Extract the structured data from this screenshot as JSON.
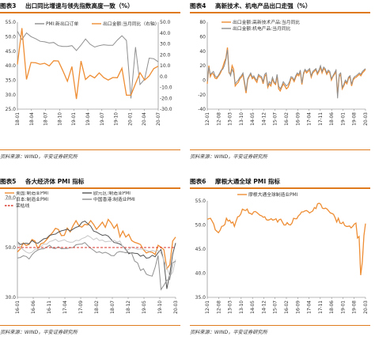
{
  "source_text": "资料来源：WIND，平安证券研究所",
  "colors": {
    "orange": "#ee8d33",
    "gray": "#8f8f8f",
    "light_gray": "#c8c8c8",
    "dark_gray": "#555555",
    "red_dashed": "#d9362c",
    "accent": "#e07a1e"
  },
  "charts": [
    {
      "id": "fig3",
      "fig_no": "图表3",
      "title": "出口同比增速与领先指数高度一致（%）",
      "legend": [
        "PMI:新出口订单",
        "出口金额:当月同比（右轴）"
      ],
      "y_left_ticks": [
        "55.0",
        "50.0",
        "45.0",
        "40.0",
        "35.0",
        "30.0",
        "25.0"
      ],
      "y_right_ticks": [
        "50.0",
        "40.0",
        "30.0",
        "20.0",
        "10.0",
        "0.0",
        "-10.0",
        "-20.0",
        "-30.0"
      ],
      "x_ticks": [
        "18-01",
        "18-04",
        "18-07",
        "18-10",
        "19-01",
        "19-04",
        "19-07",
        "19-10",
        "20-01",
        "20-04",
        "20-07"
      ]
    },
    {
      "id": "fig4",
      "fig_no": "图表4",
      "title": "高新技术、机电产品出口走强（%）",
      "legend": [
        "出口金额:高新技术产品:当月同比",
        "出口金额:机电产品:当月同比"
      ],
      "y_ticks": [
        "80",
        "60",
        "40",
        "20",
        "0",
        "-20",
        "-40"
      ],
      "x_ticks": [
        "12-01",
        "12-08",
        "13-03",
        "13-10",
        "14-05",
        "14-12",
        "15-07",
        "16-02",
        "16-09",
        "17-04",
        "17-11",
        "18-06",
        "19-01",
        "19-08",
        "20-03"
      ]
    },
    {
      "id": "fig5",
      "fig_no": "图表5",
      "title": "各大经济体 PMI 指标",
      "legend": [
        "美国:制造业PMI",
        "欧元区:制造业PMI",
        "日本:制造业PMI",
        "中国香港:制造业PMI",
        "荣枯线"
      ],
      "y_ticks": [
        "70.0",
        "50.0",
        "30.0"
      ],
      "x_ticks": [
        "16-01",
        "16-06",
        "16-11",
        "17-04",
        "17-09",
        "18-02",
        "18-07",
        "18-12",
        "19-05",
        "19-10",
        "20-03"
      ]
    },
    {
      "id": "fig6",
      "fig_no": "图表6",
      "title": "摩根大通全球 PMI 指标",
      "legend": [
        "摩根大通全球制造业PMI"
      ],
      "y_ticks": [
        "55.0",
        "50.0",
        "45.0",
        "40.0",
        "35.0"
      ],
      "x_ticks": [
        "12-01",
        "12-08",
        "13-03",
        "13-10",
        "14-05",
        "14-12",
        "15-07",
        "16-02",
        "16-09",
        "17-04",
        "17-11",
        "18-06",
        "19-01",
        "19-08",
        "20-03"
      ]
    }
  ],
  "chart_data": [
    {
      "type": "line",
      "title": "出口同比增速与领先指数高度一致（%）",
      "xlabel": "",
      "ylabel": "",
      "x_range": [
        "18-01",
        "20-08"
      ],
      "ylim_left": [
        25,
        55
      ],
      "ylim_right": [
        -30,
        50
      ],
      "series": [
        {
          "name": "PMI:新出口订单",
          "axis": "left",
          "color": "gray",
          "values": [
            51.9,
            49.0,
            51.3,
            50.0,
            49.3,
            48.4,
            48.2,
            47.8,
            48.0,
            46.9,
            46.6,
            46.6,
            46.9,
            45.2,
            47.1,
            49.2,
            47.4,
            46.4,
            46.9,
            47.2,
            47.0,
            47.0,
            48.8,
            50.3,
            48.7,
            28.7,
            46.4,
            33.5,
            35.3,
            42.6,
            42.4,
            41.3
          ]
        },
        {
          "name": "出口金额:当月同比（右轴）",
          "axis": "right",
          "color": "orange",
          "values": [
            11.1,
            44.5,
            -2.7,
            12.9,
            12.6,
            11.3,
            12.2,
            9.8,
            14.5,
            14.3,
            5.4,
            -4.4,
            9.1,
            -20.7,
            14.2,
            -2.7,
            1.1,
            -1.3,
            3.3,
            -1.0,
            -3.2,
            -0.9,
            -1.1,
            7.6,
            -17.2,
            -17.2,
            -6.6,
            3.5,
            -3.3,
            0.5,
            7.2,
            9.5
          ]
        }
      ]
    },
    {
      "type": "line",
      "title": "高新技术、机电产品出口走强（%）",
      "xlabel": "",
      "ylabel": "",
      "x_range": [
        "12-01",
        "20-07"
      ],
      "ylim": [
        -40,
        80
      ],
      "series": [
        {
          "name": "出口金额:高新技术产品:当月同比",
          "color": "orange",
          "values": [
            -5,
            20,
            5,
            10,
            8,
            3,
            2,
            5,
            8,
            12,
            18,
            25,
            30,
            45,
            10,
            8,
            20,
            15,
            -8,
            -5,
            -3,
            2,
            4,
            8,
            -5,
            -18,
            0,
            5,
            8,
            2,
            4,
            0,
            -3,
            6,
            4,
            3,
            -5,
            5,
            8,
            -10,
            -5,
            -8,
            2,
            -4,
            -6,
            6,
            -12,
            -15,
            -10,
            -5,
            -8,
            -12,
            -10,
            -5,
            3,
            2,
            -2,
            4,
            8,
            6,
            12,
            -6,
            8,
            14,
            10,
            12,
            14,
            4,
            10,
            12,
            15,
            8,
            12,
            18,
            10,
            16,
            14,
            8,
            12,
            10,
            0,
            5,
            8,
            12,
            -20,
            5,
            8,
            -12,
            -8,
            -2,
            -5,
            2,
            5,
            -8,
            0,
            3,
            4,
            6,
            8,
            6,
            10,
            12,
            15
          ]
        },
        {
          "name": "出口金额:机电产品:当月同比",
          "color": "gray",
          "values": [
            -2,
            18,
            8,
            10,
            12,
            6,
            4,
            6,
            10,
            14,
            15,
            20,
            28,
            42,
            12,
            6,
            15,
            10,
            -5,
            -2,
            0,
            4,
            6,
            10,
            -2,
            -15,
            2,
            6,
            10,
            4,
            6,
            2,
            0,
            8,
            6,
            5,
            -2,
            8,
            10,
            -8,
            -2,
            -5,
            4,
            -2,
            -4,
            8,
            -8,
            -12,
            -8,
            -2,
            -5,
            -8,
            -6,
            -2,
            5,
            4,
            0,
            6,
            10,
            8,
            14,
            -4,
            10,
            15,
            12,
            14,
            16,
            6,
            12,
            14,
            16,
            10,
            14,
            20,
            12,
            18,
            16,
            10,
            14,
            12,
            2,
            6,
            10,
            14,
            -25,
            8,
            10,
            -10,
            -6,
            0,
            -3,
            4,
            6,
            -6,
            2,
            5,
            6,
            8,
            10,
            8,
            12,
            14,
            16
          ]
        }
      ]
    },
    {
      "type": "line",
      "title": "各大经济体 PMI 指标",
      "xlabel": "",
      "ylabel": "",
      "x_range": [
        "16-01",
        "20-07"
      ],
      "ylim": [
        30,
        70
      ],
      "series": [
        {
          "name": "美国:制造业PMI",
          "color": "orange",
          "values": [
            48.2,
            49.5,
            51.8,
            50.8,
            51.3,
            53.2,
            52.6,
            49.4,
            51.5,
            51.9,
            53.2,
            54.7,
            56.0,
            57.7,
            57.2,
            54.8,
            54.9,
            57.8,
            56.3,
            58.8,
            60.8,
            58.7,
            58.2,
            59.3,
            59.1,
            60.8,
            59.3,
            57.3,
            58.7,
            60.2,
            58.1,
            61.3,
            59.8,
            57.7,
            59.3,
            54.3,
            56.6,
            54.2,
            55.3,
            52.8,
            52.1,
            51.7,
            51.2,
            49.1,
            47.8,
            48.3,
            48.1,
            47.2,
            50.9,
            50.1,
            49.1,
            41.5,
            43.1,
            52.6,
            54.2
          ]
        },
        {
          "name": "欧元区:制造业PMI",
          "color": "dark_gray",
          "values": [
            52.3,
            51.2,
            51.6,
            51.7,
            51.5,
            52.8,
            52.0,
            51.7,
            52.6,
            53.5,
            53.7,
            54.9,
            55.2,
            55.4,
            56.2,
            56.7,
            57.0,
            57.4,
            56.6,
            57.4,
            58.1,
            58.5,
            60.1,
            60.6,
            59.6,
            58.6,
            56.6,
            56.2,
            55.5,
            54.9,
            55.1,
            54.6,
            53.2,
            52.0,
            51.8,
            51.4,
            50.5,
            49.3,
            47.5,
            47.9,
            47.7,
            47.6,
            46.5,
            47.0,
            45.7,
            45.9,
            46.9,
            46.3,
            47.9,
            49.2,
            44.5,
            33.4,
            39.4,
            47.4,
            51.8
          ]
        },
        {
          "name": "日本:制造业PMI",
          "color": "light_gray",
          "values": [
            52.3,
            50.1,
            49.1,
            48.2,
            47.7,
            48.1,
            49.3,
            49.5,
            50.4,
            51.4,
            51.3,
            52.4,
            52.7,
            53.3,
            52.4,
            52.7,
            53.1,
            52.4,
            52.1,
            52.2,
            52.9,
            52.8,
            53.6,
            54.0,
            54.8,
            54.1,
            53.1,
            53.8,
            52.8,
            53.0,
            52.3,
            52.5,
            52.5,
            52.9,
            52.2,
            52.6,
            50.3,
            48.9,
            49.2,
            50.2,
            49.8,
            49.3,
            49.4,
            49.3,
            48.9,
            48.4,
            48.9,
            48.4,
            48.8,
            47.8,
            44.8,
            41.9,
            38.4,
            40.1,
            45.2
          ]
        },
        {
          "name": "中国香港:制造业PMI",
          "color": "gray",
          "values": [
            45.8,
            46.0,
            46.7,
            46.4,
            45.4,
            47.1,
            48.3,
            49.0,
            49.4,
            49.5,
            50.2,
            50.9,
            49.8,
            49.6,
            50.3,
            49.5,
            49.6,
            49.6,
            49.9,
            50.0,
            51.1,
            51.3,
            51.4,
            52.0,
            50.8,
            49.7,
            48.9,
            48.0,
            48.3,
            47.7,
            48.1,
            47.6,
            46.8,
            46.7,
            48.0,
            48.4,
            48.2,
            47.9,
            48.0,
            47.7,
            44.6,
            43.8,
            40.8,
            41.5,
            39.3,
            38.8,
            38.5,
            42.1,
            46.8,
            33.1,
            34.9,
            36.9,
            37.2,
            43.9,
            44.5
          ]
        },
        {
          "name": "荣枯线",
          "color": "red_dashed",
          "dashed": true,
          "values": [
            50,
            50
          ]
        }
      ]
    },
    {
      "type": "line",
      "title": "摩根大通全球 PMI 指标",
      "xlabel": "",
      "ylabel": "",
      "x_range": [
        "12-01",
        "20-07"
      ],
      "ylim": [
        35,
        55
      ],
      "series": [
        {
          "name": "摩根大通全球制造业PMI",
          "color": "orange",
          "values": [
            51.2,
            51.3,
            51.4,
            50.8,
            50.2,
            49.0,
            48.7,
            48.4,
            48.9,
            49.7,
            49.8,
            50.1,
            51.4,
            50.8,
            51.0,
            50.4,
            50.6,
            49.7,
            50.8,
            51.7,
            51.8,
            52.3,
            53.3,
            53.1,
            53.0,
            53.3,
            52.5,
            52.4,
            52.2,
            52.7,
            52.8,
            52.6,
            52.3,
            52.0,
            51.9,
            51.6,
            51.7,
            51.1,
            51.0,
            51.1,
            51.3,
            51.0,
            51.1,
            51.3,
            50.6,
            51.1,
            51.2,
            50.6,
            50.0,
            50.0,
            50.5,
            50.1,
            50.0,
            50.4,
            51.4,
            51.3,
            51.3,
            51.9,
            52.2,
            52.7,
            52.7,
            52.9,
            53.0,
            52.8,
            52.5,
            52.7,
            52.9,
            53.6,
            53.4,
            54.4,
            54.5,
            54.3,
            53.5,
            53.4,
            53.5,
            53.3,
            52.9,
            52.5,
            52.4,
            52.2,
            51.5,
            50.6,
            51.4,
            50.4,
            50.3,
            50.6,
            49.9,
            49.7,
            49.7,
            49.8,
            49.4,
            49.7,
            50.2,
            50.4,
            47.3,
            47.6,
            39.6,
            42.4,
            47.8,
            50.3
          ]
        }
      ]
    }
  ]
}
